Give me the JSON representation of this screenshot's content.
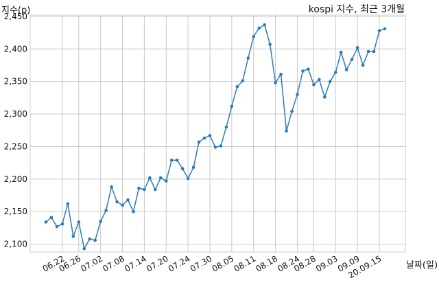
{
  "chart_data": {
    "type": "line",
    "title": "kospi 지수, 최근 3개월",
    "ylabel": "지수(p)",
    "xlabel": "날짜(일)",
    "ylim": [
      2088,
      2452
    ],
    "yticks": [
      2100,
      2150,
      2200,
      2250,
      2300,
      2350,
      2400,
      2450
    ],
    "ytick_labels": [
      "2,100",
      "2,150",
      "2,200",
      "2,250",
      "2,300",
      "2,350",
      "2,400",
      "2,450"
    ],
    "xtick_labels": [
      "06.22",
      "06.26",
      "07.02",
      "07.08",
      "07.14",
      "07.20",
      "07.24",
      "07.30",
      "08.05",
      "08.11",
      "08.18",
      "08.24",
      "08.28",
      "09.03",
      "09.09",
      "20.09.15"
    ],
    "xtick_index": [
      3,
      6,
      10,
      14,
      18,
      22,
      26,
      30,
      34,
      38,
      42,
      46,
      49,
      53,
      57,
      61
    ],
    "grid": true,
    "series": [
      {
        "color": "#2b7bb9",
        "values": [
          2134,
          2141,
          2127,
          2131,
          2162,
          2112,
          2134,
          2093,
          2108,
          2106,
          2135,
          2152,
          2188,
          2165,
          2160,
          2168,
          2150,
          2186,
          2184,
          2202,
          2184,
          2202,
          2197,
          2229,
          2229,
          2216,
          2201,
          2218,
          2257,
          2263,
          2267,
          2249,
          2251,
          2280,
          2312,
          2342,
          2351,
          2386,
          2419,
          2432,
          2437,
          2407,
          2348,
          2361,
          2274,
          2304,
          2330,
          2366,
          2369,
          2345,
          2353,
          2326,
          2350,
          2364,
          2395,
          2368,
          2384,
          2402,
          2375,
          2396,
          2396,
          2428,
          2431
        ]
      }
    ]
  }
}
